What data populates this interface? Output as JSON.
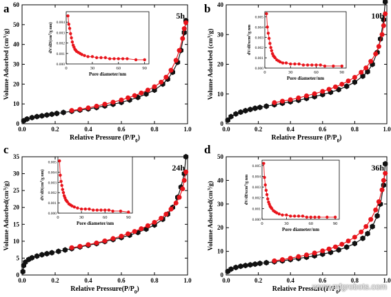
{
  "watermark": "www.mfgrobots.com",
  "colors": {
    "black_series": "#111111",
    "red_series": "#e8141b",
    "axis": "#000000"
  },
  "chart_data": [
    {
      "type": "line",
      "panel_letter": "a",
      "sample_label": "5h",
      "xlabel": "Relative  Pressure (P/P0)",
      "ylabel": "Volume Adsorbed (cm3/g)",
      "xlim": [
        0,
        1.0
      ],
      "ylim": [
        0,
        60
      ],
      "xticks": [
        "0.0",
        "0.2",
        "0.4",
        "0.6",
        "0.8",
        "1.0"
      ],
      "yticks": [
        "0",
        "10",
        "20",
        "30",
        "40",
        "50",
        "60"
      ],
      "legend": "none",
      "series": [
        {
          "role": "adsorption",
          "color": "#111111",
          "x": [
            0.01,
            0.03,
            0.06,
            0.09,
            0.12,
            0.15,
            0.18,
            0.21,
            0.25,
            0.3,
            0.35,
            0.4,
            0.45,
            0.5,
            0.55,
            0.6,
            0.65,
            0.7,
            0.75,
            0.8,
            0.85,
            0.88,
            0.91,
            0.94,
            0.96,
            0.98,
            0.99
          ],
          "y": [
            1.5,
            2.4,
            3.1,
            3.6,
            4.0,
            4.4,
            4.8,
            5.2,
            5.7,
            6.3,
            6.9,
            7.5,
            8.2,
            9.0,
            9.8,
            10.8,
            12.0,
            13.3,
            15.0,
            17.0,
            20.0,
            22.5,
            26.0,
            31.0,
            37.0,
            46.0,
            52.0
          ]
        },
        {
          "role": "desorption",
          "color": "#e8141b",
          "x": [
            0.99,
            0.98,
            0.97,
            0.95,
            0.93,
            0.9,
            0.87,
            0.84,
            0.8,
            0.76,
            0.72,
            0.68,
            0.64,
            0.6,
            0.55,
            0.5,
            0.45,
            0.4,
            0.35,
            0.3
          ],
          "y": [
            51.0,
            48.0,
            43.0,
            37.0,
            32.0,
            27.0,
            23.5,
            21.0,
            18.7,
            17.0,
            15.5,
            14.2,
            13.1,
            12.0,
            10.9,
            9.9,
            8.9,
            8.0,
            7.3,
            6.7
          ]
        }
      ],
      "inset": {
        "xlabel": "Pore diameter/nm",
        "ylabel": "dV/dD(cm3/g nm)",
        "xlim": [
          0,
          95
        ],
        "ylim": [
          0,
          0.005
        ],
        "xticks": [
          "0",
          "30",
          "60",
          "90"
        ],
        "yticks": [
          "0.000",
          "0.001",
          "0.002",
          "0.003",
          "0.004"
        ],
        "x": [
          2,
          3,
          4,
          5,
          6,
          7,
          8,
          9,
          10,
          11,
          12,
          14,
          16,
          18,
          21,
          25,
          30,
          35,
          40,
          45,
          50,
          55,
          60,
          65,
          70,
          80,
          90
        ],
        "y": [
          0.0046,
          0.0038,
          0.0034,
          0.0029,
          0.0025,
          0.0021,
          0.0018,
          0.0016,
          0.0014,
          0.0013,
          0.0012,
          0.0011,
          0.001,
          0.0009,
          0.0008,
          0.0007,
          0.0007,
          0.0006,
          0.0006,
          0.0006,
          0.0005,
          0.0005,
          0.0005,
          0.0005,
          0.0005,
          0.0004,
          0.0004
        ]
      }
    },
    {
      "type": "line",
      "panel_letter": "b",
      "sample_label": "10h",
      "xlabel": "Relative  Pressure (P/P0)",
      "ylabel": "Volume Adsorbed (cm3/g)",
      "xlim": [
        0,
        1.0
      ],
      "ylim": [
        0,
        40
      ],
      "xticks": [
        "0.0",
        "0.2",
        "0.4",
        "0.6",
        "0.8",
        "1.0"
      ],
      "yticks": [
        "0",
        "10",
        "20",
        "30",
        "40"
      ],
      "legend": "none",
      "series": [
        {
          "role": "adsorption",
          "color": "#111111",
          "x": [
            0.01,
            0.03,
            0.06,
            0.09,
            0.12,
            0.15,
            0.18,
            0.21,
            0.25,
            0.3,
            0.35,
            0.4,
            0.45,
            0.5,
            0.55,
            0.6,
            0.65,
            0.7,
            0.75,
            0.8,
            0.85,
            0.88,
            0.91,
            0.94,
            0.96,
            0.98,
            0.99
          ],
          "y": [
            1.2,
            2.4,
            3.3,
            3.9,
            4.4,
            4.8,
            5.2,
            5.5,
            5.9,
            6.4,
            6.9,
            7.4,
            7.9,
            8.5,
            9.1,
            9.8,
            10.6,
            11.5,
            12.6,
            14.0,
            16.0,
            17.5,
            20.0,
            24.0,
            28.5,
            35.0,
            41.0
          ]
        },
        {
          "role": "desorption",
          "color": "#e8141b",
          "x": [
            0.99,
            0.98,
            0.97,
            0.95,
            0.93,
            0.9,
            0.87,
            0.84,
            0.8,
            0.76,
            0.72,
            0.68,
            0.64,
            0.6,
            0.55,
            0.5,
            0.45,
            0.4,
            0.35,
            0.3
          ],
          "y": [
            37.0,
            33.0,
            30.0,
            26.0,
            23.5,
            21.0,
            18.8,
            17.3,
            15.6,
            14.4,
            13.3,
            12.4,
            11.6,
            10.9,
            10.1,
            9.4,
            8.7,
            8.1,
            7.6,
            7.1
          ]
        }
      ],
      "inset": {
        "xlabel": "Pore diameter/nm",
        "ylabel": "dV/dDxcm3/g nm",
        "xlim": [
          0,
          95
        ],
        "ylim": [
          0,
          0.0055
        ],
        "xticks": [
          "0",
          "30",
          "60",
          "90"
        ],
        "yticks": [
          "0.000",
          "0.001",
          "0.002",
          "0.003",
          "0.004",
          "0.005"
        ],
        "x": [
          2,
          3,
          4,
          5,
          6,
          7,
          8,
          9,
          10,
          11,
          12,
          14,
          16,
          18,
          21,
          25,
          30,
          35,
          40,
          45,
          50,
          55,
          60,
          65,
          70,
          80,
          90
        ],
        "y": [
          0.0053,
          0.004,
          0.0034,
          0.0029,
          0.0024,
          0.002,
          0.0017,
          0.0014,
          0.0012,
          0.0011,
          0.001,
          0.0008,
          0.0007,
          0.0006,
          0.0005,
          0.0005,
          0.0004,
          0.0004,
          0.0004,
          0.0003,
          0.0003,
          0.0003,
          0.0003,
          0.0003,
          0.0002,
          0.0002,
          0.0002
        ]
      }
    },
    {
      "type": "line",
      "panel_letter": "c",
      "sample_label": "24h",
      "xlabel": "Relative Pressure(P/P0)",
      "ylabel": "Volume Adsorbed(cm3/g)",
      "xlim": [
        0,
        1.0
      ],
      "ylim": [
        0,
        35
      ],
      "xticks": [
        "0.0",
        "0.2",
        "0.4",
        "0.6",
        "0.8",
        "1.0"
      ],
      "yticks": [
        "0",
        "5",
        "10",
        "15",
        "20",
        "25",
        "30",
        "35"
      ],
      "legend": "none",
      "series": [
        {
          "role": "adsorption",
          "color": "#111111",
          "x": [
            0.005,
            0.01,
            0.02,
            0.04,
            0.06,
            0.09,
            0.12,
            0.15,
            0.18,
            0.22,
            0.26,
            0.3,
            0.35,
            0.4,
            0.45,
            0.5,
            0.55,
            0.6,
            0.65,
            0.7,
            0.75,
            0.8,
            0.85,
            0.88,
            0.91,
            0.94,
            0.96,
            0.98,
            0.99
          ],
          "y": [
            1.0,
            2.8,
            3.8,
            4.6,
            5.1,
            5.6,
            6.0,
            6.3,
            6.6,
            7.0,
            7.4,
            7.8,
            8.3,
            8.8,
            9.3,
            9.9,
            10.5,
            11.1,
            11.8,
            12.6,
            13.6,
            14.8,
            16.5,
            18.0,
            20.0,
            23.0,
            26.0,
            30.0,
            35.0
          ]
        },
        {
          "role": "desorption",
          "color": "#e8141b",
          "x": [
            0.99,
            0.98,
            0.97,
            0.95,
            0.93,
            0.9,
            0.87,
            0.84,
            0.8,
            0.76,
            0.72,
            0.68,
            0.64,
            0.6,
            0.55,
            0.5,
            0.45,
            0.4,
            0.35,
            0.3
          ],
          "y": [
            30.5,
            28.0,
            25.5,
            23.0,
            21.3,
            19.5,
            18.0,
            16.8,
            15.6,
            14.6,
            13.7,
            12.9,
            12.2,
            11.5,
            10.8,
            10.1,
            9.5,
            9.0,
            8.5,
            8.1
          ]
        }
      ],
      "inset": {
        "xlabel": "Pore diameter/nm",
        "ylabel": "dV/dD(cm3/g nm)",
        "xlim": [
          0,
          95
        ],
        "ylim": [
          0,
          0.0055
        ],
        "xticks": [
          "0",
          "30",
          "60",
          "90"
        ],
        "yticks": [
          "0.000",
          "0.001",
          "0.002",
          "0.003",
          "0.004",
          "0.005"
        ],
        "x": [
          2,
          3,
          4,
          5,
          6,
          7,
          8,
          9,
          10,
          11,
          12,
          14,
          16,
          18,
          21,
          25,
          30,
          35,
          40,
          45,
          50,
          55,
          60,
          65,
          70,
          80,
          90
        ],
        "y": [
          0.0051,
          0.0037,
          0.0031,
          0.0027,
          0.0023,
          0.002,
          0.0017,
          0.0015,
          0.0013,
          0.0012,
          0.0011,
          0.0009,
          0.0008,
          0.0007,
          0.0006,
          0.0005,
          0.0004,
          0.0004,
          0.0004,
          0.0003,
          0.0003,
          0.0003,
          0.0003,
          0.0003,
          0.0002,
          0.0002,
          0.0001
        ]
      }
    },
    {
      "type": "line",
      "panel_letter": "d",
      "sample_label": "36h",
      "xlabel": "Relative Pressure(P/P0)",
      "ylabel": "Volume Adsorbed(cm3/g)",
      "xlim": [
        0,
        1.0
      ],
      "ylim": [
        0,
        50
      ],
      "xticks": [
        "0.0",
        "0.2",
        "0.4",
        "0.6",
        "0.8",
        "1.0"
      ],
      "yticks": [
        "0",
        "10",
        "20",
        "30",
        "40",
        "50"
      ],
      "legend": "none",
      "series": [
        {
          "role": "adsorption",
          "color": "#111111",
          "x": [
            0.01,
            0.03,
            0.06,
            0.09,
            0.12,
            0.15,
            0.18,
            0.21,
            0.25,
            0.3,
            0.35,
            0.4,
            0.45,
            0.5,
            0.55,
            0.6,
            0.65,
            0.7,
            0.75,
            0.8,
            0.85,
            0.88,
            0.91,
            0.94,
            0.96,
            0.98,
            0.99
          ],
          "y": [
            1.5,
            2.5,
            3.2,
            3.7,
            4.0,
            4.3,
            4.6,
            4.9,
            5.2,
            5.6,
            6.0,
            6.5,
            7.0,
            7.5,
            8.1,
            8.8,
            9.6,
            10.6,
            11.8,
            13.3,
            15.5,
            17.5,
            20.5,
            25.0,
            30.0,
            38.0,
            47.0
          ]
        },
        {
          "role": "desorption",
          "color": "#e8141b",
          "x": [
            0.99,
            0.98,
            0.97,
            0.95,
            0.93,
            0.9,
            0.87,
            0.84,
            0.8,
            0.76,
            0.72,
            0.68,
            0.64,
            0.6,
            0.55,
            0.5,
            0.45,
            0.4,
            0.35,
            0.3
          ],
          "y": [
            43.0,
            40.0,
            36.0,
            31.0,
            27.5,
            23.5,
            20.5,
            18.2,
            16.0,
            14.4,
            13.0,
            11.9,
            11.0,
            10.2,
            9.3,
            8.5,
            7.8,
            7.1,
            6.5,
            6.0
          ]
        }
      ],
      "inset": {
        "xlabel": "Pore diameter/nm",
        "ylabel": "dV/dDxcm3/g nm",
        "xlim": [
          0,
          95
        ],
        "ylim": [
          0,
          0.0055
        ],
        "xticks": [
          "0",
          "30",
          "60",
          "90"
        ],
        "yticks": [
          "0.000",
          "0.001",
          "0.002",
          "0.003",
          "0.004",
          "0.005"
        ],
        "x": [
          2,
          3,
          4,
          5,
          6,
          7,
          8,
          9,
          10,
          11,
          12,
          14,
          16,
          18,
          21,
          25,
          30,
          35,
          40,
          45,
          50,
          55,
          60,
          65,
          70,
          80,
          90
        ],
        "y": [
          0.0052,
          0.0039,
          0.0032,
          0.0027,
          0.0023,
          0.0019,
          0.0016,
          0.0014,
          0.0012,
          0.0011,
          0.001,
          0.0008,
          0.0007,
          0.0006,
          0.0005,
          0.0004,
          0.0004,
          0.0003,
          0.0003,
          0.0003,
          0.0003,
          0.0002,
          0.0002,
          0.0002,
          0.0002,
          0.0002,
          0.0002
        ]
      }
    }
  ]
}
